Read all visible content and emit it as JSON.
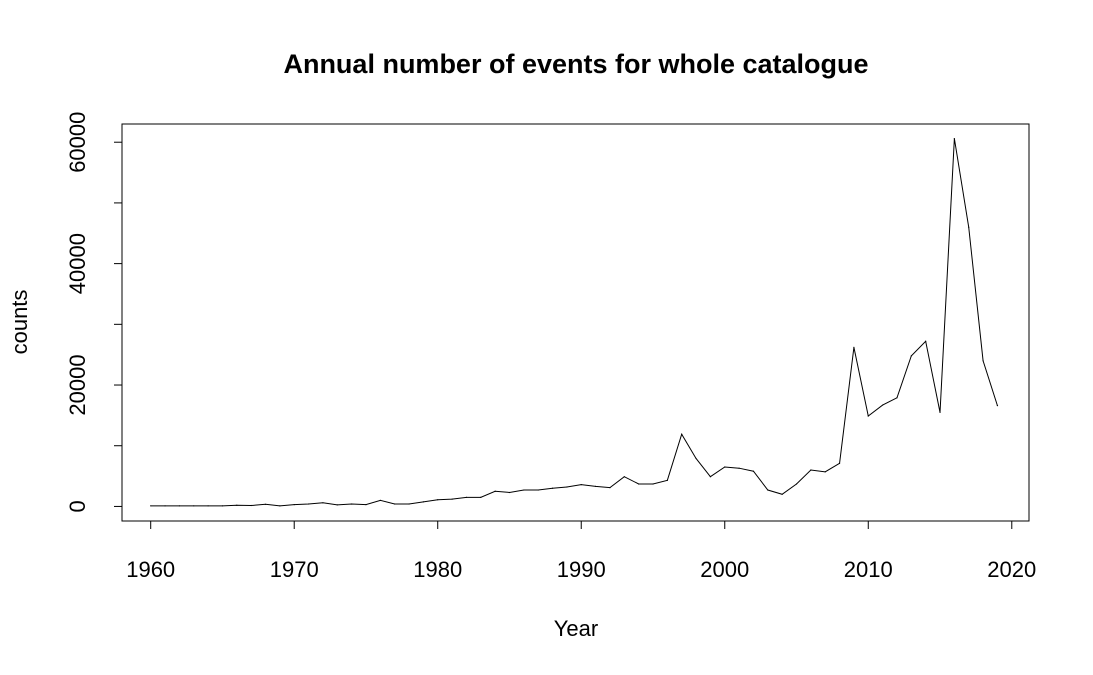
{
  "chart_data": {
    "type": "line",
    "title": "Annual number of events for whole catalogue",
    "xlabel": "Year",
    "ylabel": "counts",
    "xlim": [
      1958,
      2021.2
    ],
    "ylim": [
      -2400,
      63000
    ],
    "x_ticks": [
      1960,
      1970,
      1980,
      1990,
      2000,
      2010,
      2020
    ],
    "y_ticks": [
      0,
      20000,
      40000,
      60000
    ],
    "y_minor_ticks": [
      10000,
      30000,
      50000
    ],
    "x_tick_labels": [
      "1960",
      "1970",
      "1980",
      "1990",
      "2000",
      "2010",
      "2020"
    ],
    "y_tick_labels": [
      "0",
      "20000",
      "40000",
      "60000"
    ],
    "grid": false,
    "line_color": "#000000",
    "series": [
      {
        "x": [
          1960,
          1961,
          1962,
          1963,
          1964,
          1965,
          1966,
          1967,
          1968,
          1969,
          1970,
          1971,
          1972,
          1973,
          1974,
          1975,
          1976,
          1977,
          1978,
          1979,
          1980,
          1981,
          1982,
          1983,
          1984,
          1985,
          1986,
          1987,
          1988,
          1989,
          1990,
          1991,
          1992,
          1993,
          1994,
          1995,
          1996,
          1997,
          1998,
          1999,
          2000,
          2001,
          2002,
          2003,
          2004,
          2005,
          2006,
          2007,
          2008,
          2009,
          2010,
          2011,
          2012,
          2013,
          2014,
          2015,
          2016,
          2017,
          2018,
          2019
        ],
        "values": [
          100,
          100,
          100,
          100,
          100,
          100,
          200,
          150,
          350,
          100,
          300,
          400,
          600,
          250,
          400,
          300,
          1000,
          400,
          400,
          750,
          1100,
          1200,
          1500,
          1500,
          2500,
          2300,
          2700,
          2700,
          3000,
          3200,
          3600,
          3300,
          3100,
          4900,
          3700,
          3700,
          4300,
          11900,
          7900,
          4900,
          6500,
          6300,
          5800,
          2700,
          2000,
          3700,
          6000,
          5700,
          7100,
          26200,
          14900,
          16700,
          17900,
          24800,
          27200,
          15500,
          60600,
          46000,
          24000,
          16600
        ]
      }
    ]
  }
}
